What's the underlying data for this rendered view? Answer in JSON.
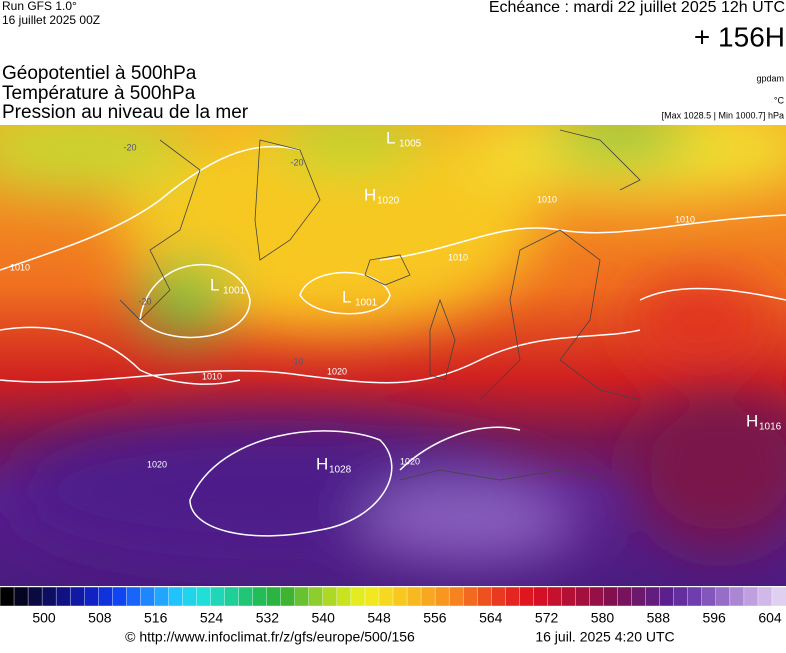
{
  "header": {
    "run": "Run GFS 1.0°",
    "run_date": "16 juillet 2025 00Z",
    "forecast": "Echéance : mardi 22 juillet 2025 12h UTC",
    "lead": "+ 156H"
  },
  "titles": [
    "Géopotentiel à 500hPa",
    "Température à 500hPa",
    "Pression au niveau de la mer"
  ],
  "units": {
    "geopotential": "gpdam",
    "temperature": "°C",
    "pressure": "[Max 1028.5 | Min 1000.7] hPa"
  },
  "map": {
    "centers": [
      {
        "letter": "L",
        "value": "1001"
      },
      {
        "letter": "L",
        "value": "1001"
      },
      {
        "letter": "H",
        "value": "1028"
      },
      {
        "letter": "H",
        "value": "1016"
      },
      {
        "letter": "L",
        "value": "1005"
      },
      {
        "letter": "H",
        "value": "1020"
      }
    ],
    "isobar_labels": [
      "1020",
      "1020",
      "1010",
      "1010",
      "1010",
      "1010",
      "1020",
      "1010"
    ],
    "temperature_labels": [
      "-20",
      "-20",
      "-20",
      "-10"
    ]
  },
  "colorbar": {
    "labels": [
      500,
      508,
      516,
      524,
      532,
      540,
      548,
      556,
      564,
      572,
      580,
      588,
      596,
      604
    ]
  },
  "footer": {
    "source": "© http://www.infoclimat.fr/z/gfs/europe/500/156",
    "generated": "16 juil. 2025  4:20 UTC"
  }
}
